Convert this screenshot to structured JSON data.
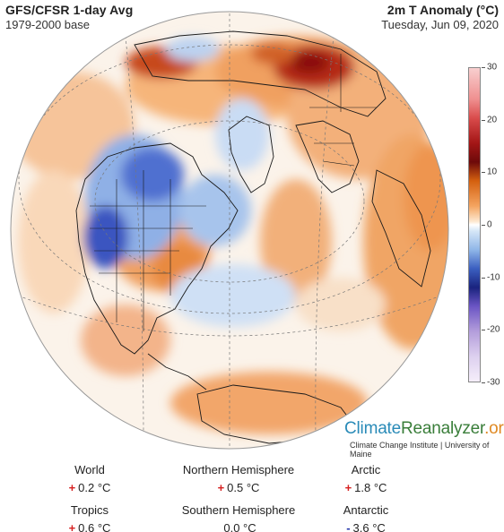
{
  "header": {
    "title": "GFS/CFSR 1-day Avg",
    "baseline": "1979-2000 base",
    "variable": "2m T Anomaly (°C)",
    "date": "Tuesday, Jun 09, 2020"
  },
  "colorbar": {
    "ticks": [
      "30",
      "20",
      "10",
      "0",
      "-10",
      "-20",
      "-30"
    ],
    "range": [
      -30,
      30
    ]
  },
  "brand": {
    "name_part1": "Climate",
    "name_part2": "Reanalyzer",
    "name_part3": ".org",
    "subtitle": "Climate Change Institute | University of Maine"
  },
  "stats": [
    {
      "label": "World",
      "sign": "+",
      "value": "0.2 °C"
    },
    {
      "label": "Northern Hemisphere",
      "sign": "+",
      "value": "0.5 °C"
    },
    {
      "label": "Arctic",
      "sign": "+",
      "value": "1.8 °C"
    },
    {
      "label": "Tropics",
      "sign": "+",
      "value": "0.6 °C"
    },
    {
      "label": "Southern Hemisphere",
      "sign": "",
      "value": "0.0 °C"
    },
    {
      "label": "Antarctic",
      "sign": "-",
      "value": "3.6 °C"
    }
  ]
}
